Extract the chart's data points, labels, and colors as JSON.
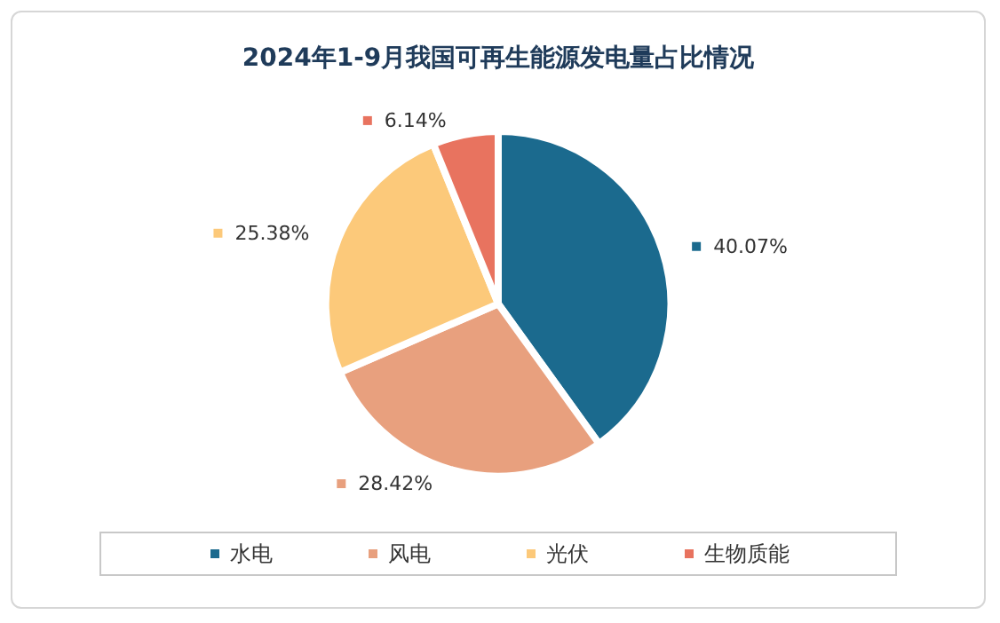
{
  "chart_data": {
    "type": "pie",
    "title": "2024年1-9月我国可再生能源发电量占比情况",
    "categories": [
      "水电",
      "风电",
      "光伏",
      "生物质能"
    ],
    "values": [
      40.07,
      28.42,
      25.38,
      6.14
    ],
    "colors": [
      "#1b6a8e",
      "#e8a07e",
      "#fcc97a",
      "#e8735f"
    ],
    "value_labels": [
      "40.07%",
      "28.42%",
      "25.38%",
      "6.14%"
    ],
    "legend": "bottom"
  }
}
